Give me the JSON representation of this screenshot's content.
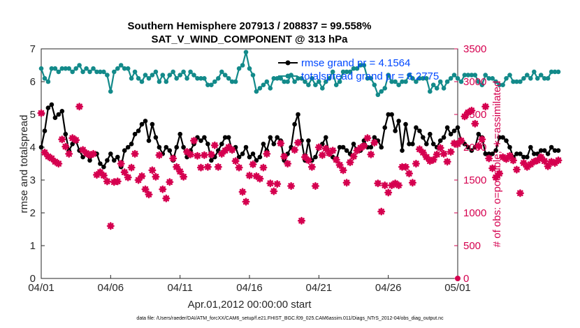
{
  "chart_data": {
    "type": "line",
    "title_line1": "Southern Hemisphere 207913 / 208837 = 99.558%",
    "title_line2": "SAT_V_WIND_COMPONENT @ 313 hPa",
    "xlabel": "Apr.01,2012 00:00:00 start",
    "ylabel_left": "rmse and totalspread",
    "ylabel_right": "# of obs: o=possible; ∗=assimilated",
    "footer": "data file: /Users/raeder/DAI/ATM_forcXX/CAM6_setup/f.e21.FHIST_BGC.f09_025.CAM6assim.011/Diags_NTrS_2012-04/obs_diag_output.nc",
    "x_ticks": [
      "04/01",
      "04/06",
      "04/11",
      "04/16",
      "04/21",
      "04/26",
      "05/01"
    ],
    "x_range_days": [
      0,
      30
    ],
    "y_left_range": [
      0,
      7
    ],
    "y_left_ticks": [
      "0",
      "1",
      "2",
      "3",
      "4",
      "5",
      "6",
      "7"
    ],
    "y_right_range": [
      0,
      3500
    ],
    "y_right_ticks": [
      "0",
      "500",
      "1000",
      "1500",
      "2000",
      "2500",
      "3000",
      "3500"
    ],
    "legend": {
      "rmse": "rmse grand pr = 4.1564",
      "spread": "totalspread grand pr = 6.2775"
    },
    "colors": {
      "rmse": "#000000",
      "spread": "#138A8A",
      "obs": "#D5004F",
      "legend_text": "#0048FF"
    },
    "series": [
      {
        "name": "rmse",
        "axis": "left",
        "x_start_day": 0.0,
        "x_step_day": 0.25,
        "values": [
          4.0,
          4.5,
          5.2,
          5.3,
          4.9,
          5.0,
          5.1,
          4.4,
          3.9,
          4.1,
          4.2,
          3.9,
          3.7,
          3.8,
          3.6,
          3.8,
          3.8,
          3.5,
          3.4,
          3.6,
          3.8,
          3.6,
          3.7,
          3.4,
          3.9,
          4.0,
          4.1,
          4.4,
          4.5,
          4.7,
          4.8,
          4.2,
          4.7,
          4.3,
          4.0,
          3.8,
          4.0,
          3.9,
          3.6,
          4.0,
          4.4,
          4.0,
          3.7,
          3.9,
          4.1,
          4.3,
          4.2,
          4.3,
          4.1,
          3.6,
          3.7,
          3.9,
          4.1,
          4.3,
          4.3,
          3.9,
          4.0,
          3.7,
          3.8,
          4.0,
          3.7,
          3.8,
          3.6,
          3.7,
          4.1,
          3.9,
          4.3,
          4.1,
          4.3,
          4.2,
          3.6,
          3.8,
          4.0,
          4.7,
          5.0,
          4.2,
          3.6,
          4.2,
          3.6,
          3.7,
          4.0,
          4.1,
          4.3,
          3.8,
          3.7,
          3.6,
          4.0,
          4.0,
          3.9,
          3.8,
          4.1,
          3.9,
          3.9,
          4.2,
          4.0,
          4.0,
          4.3,
          4.2,
          4.0,
          4.6,
          5.0,
          5.0,
          4.5,
          4.8,
          3.9,
          4.7,
          4.1,
          4.1,
          4.6,
          4.5,
          4.3,
          4.1,
          4.4,
          4.1,
          4.0,
          4.2,
          4.3,
          4.6,
          4.4,
          4.5,
          4.6,
          4.2,
          4.1,
          4.0,
          3.9,
          4.0,
          4.4,
          4.3,
          3.8,
          3.8,
          3.8,
          3.9,
          4.3,
          4.3,
          4.2,
          4.0,
          3.7,
          3.8,
          3.8,
          3.7,
          3.7,
          4.0,
          3.8,
          3.8,
          3.9,
          3.9,
          3.8,
          4.0,
          3.9,
          3.9
        ]
      },
      {
        "name": "totalspread",
        "axis": "left",
        "x_start_day": 0.0,
        "x_step_day": 0.25,
        "values": [
          6.4,
          6.1,
          6.0,
          6.4,
          6.4,
          6.3,
          6.4,
          6.4,
          6.4,
          6.3,
          6.4,
          6.5,
          6.3,
          6.4,
          6.3,
          6.4,
          6.3,
          6.3,
          6.3,
          6.2,
          5.7,
          6.3,
          6.4,
          6.5,
          6.4,
          6.4,
          6.1,
          6.3,
          6.1,
          6.0,
          6.2,
          6.1,
          6.2,
          6.3,
          6.0,
          6.2,
          6.0,
          6.2,
          6.3,
          6.1,
          6.2,
          6.3,
          6.1,
          6.3,
          6.2,
          6.1,
          6.1,
          6.1,
          5.9,
          5.9,
          6.0,
          6.1,
          6.3,
          6.2,
          6.1,
          6.0,
          6.0,
          6.4,
          6.5,
          6.9,
          6.4,
          6.2,
          5.7,
          5.8,
          5.9,
          6.0,
          5.8,
          6.1,
          6.1,
          6.1,
          6.0,
          6.0,
          6.2,
          6.0,
          6.1,
          6.1,
          6.0,
          5.9,
          6.1,
          5.9,
          6.0,
          5.8,
          6.0,
          6.1,
          6.3,
          5.9,
          6.0,
          6.3,
          6.3,
          6.3,
          6.4,
          6.4,
          6.5,
          6.5,
          6.1,
          6.1,
          5.9,
          5.6,
          5.7,
          5.8,
          6.2,
          6.0,
          6.0,
          5.9,
          6.0,
          6.0,
          6.2,
          6.1,
          6.0,
          6.1,
          6.1,
          6.1,
          5.7,
          5.9,
          5.8,
          6.0,
          5.8,
          6.0,
          6.1,
          6.2,
          6.1,
          6.0,
          6.2,
          6.2,
          6.2,
          6.2,
          6.0,
          5.9,
          6.2,
          6.1,
          6.1,
          6.0,
          5.9,
          5.9,
          6.1,
          6.2,
          6.0,
          6.0,
          6.0,
          6.1,
          6.2,
          6.1,
          6.3,
          6.1,
          6.2,
          6.1,
          6.1,
          6.3,
          6.3,
          6.3
        ]
      },
      {
        "name": "obs_assimilated",
        "axis": "right",
        "x_start_day": 0.0,
        "x_step_day": 0.25,
        "values": [
          2520,
          1920,
          1860,
          1830,
          1780,
          1750,
          2120,
          2010,
          1900,
          2140,
          2110,
          2620,
          1960,
          1910,
          1880,
          1900,
          1580,
          1620,
          1570,
          1480,
          800,
          1470,
          1480,
          1750,
          1620,
          1540,
          1690,
          1900,
          1500,
          1560,
          1360,
          1280,
          1650,
          1550,
          1880,
          1360,
          1220,
          1470,
          1830,
          1700,
          1630,
          1550,
          1930,
          1890,
          2100,
          1870,
          1690,
          1880,
          1700,
          1890,
          2030,
          1700,
          1900,
          1950,
          2000,
          1960,
          1790,
          1690,
          1320,
          1170,
          1570,
          1740,
          1560,
          1520,
          1690,
          1900,
          1450,
          1330,
          1440,
          2060,
          1860,
          1750,
          1410,
          1960,
          2070,
          880,
          1850,
          1800,
          1700,
          1410,
          2000,
          1880,
          1980,
          1910,
          1950,
          1810,
          1730,
          1650,
          1460,
          1770,
          1860,
          1950,
          1990,
          2020,
          2140,
          1890,
          2070,
          1450,
          1020,
          1420,
          1310,
          1420,
          1450,
          1420,
          1700,
          1700,
          1600,
          1460,
          1750,
          1970,
          1920,
          1850,
          1790,
          1810,
          1890,
          1990,
          1900,
          1780,
          1930,
          2060,
          2050,
          2100,
          2470,
          2530,
          2560,
          2360,
          2020,
          2120,
          2620,
          1830,
          1680,
          1540,
          1600,
          1850,
          1820,
          1870,
          1800,
          1660,
          1300,
          1760,
          1700,
          1740,
          1780,
          1800,
          1850,
          1790,
          1710,
          1780,
          1760,
          1800
        ]
      }
    ]
  }
}
